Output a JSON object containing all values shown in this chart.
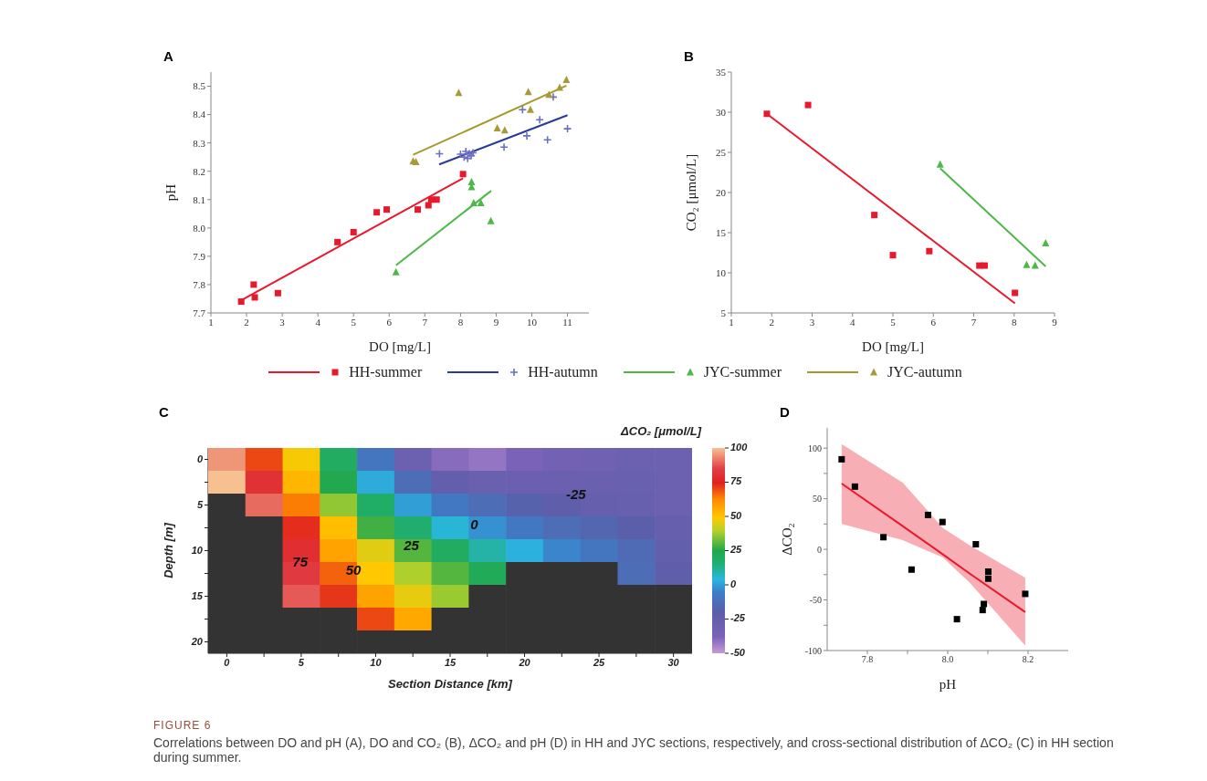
{
  "chart_data": [
    {
      "type": "scatter",
      "title": "A",
      "xlabel": "DO [mg/L]",
      "ylabel": "pH",
      "xlim": [
        1,
        11.6
      ],
      "xticks": [
        1,
        2,
        3,
        4,
        5,
        6,
        7,
        8,
        9,
        10,
        11
      ],
      "ylim": [
        7.7,
        8.55
      ],
      "yticks": [
        7.7,
        7.8,
        7.9,
        {
          "value": 8,
          "label": "8.0"
        },
        8.1,
        8.2,
        8.3,
        8.4,
        8.5
      ],
      "legend": "bottom",
      "series": [
        {
          "name": "HH-summer",
          "type": "scatter",
          "color": "#e8192c",
          "marker": "square",
          "x": [
            1.85,
            2.2,
            2.23,
            2.88,
            4.55,
            5.0,
            5.65,
            5.93,
            6.8,
            7.1,
            7.18,
            7.33,
            8.07
          ],
          "values": [
            7.74,
            7.8,
            7.755,
            7.77,
            7.95,
            7.985,
            8.055,
            8.065,
            8.065,
            8.08,
            8.1,
            8.1,
            8.19
          ]
        },
        {
          "type": "line",
          "color": "#e8192c",
          "x": [
            1.85,
            8.07
          ],
          "values": [
            7.745,
            8.175
          ]
        },
        {
          "name": "HH-autumn",
          "type": "scatter",
          "color": "#6b6fbf",
          "marker": "cross",
          "x": [
            7.41,
            8.0,
            8.1,
            8.15,
            8.2,
            8.3,
            8.35,
            8.25,
            9.22,
            9.74,
            9.86,
            10.22,
            10.44,
            10.6,
            11.0
          ],
          "values": [
            8.262,
            8.26,
            8.25,
            8.27,
            8.245,
            8.255,
            8.265,
            8.262,
            8.285,
            8.417,
            8.325,
            8.382,
            8.311,
            8.462,
            8.35
          ]
        },
        {
          "type": "line",
          "color": "#2b3a9a",
          "x": [
            7.4,
            11.0
          ],
          "values": [
            8.224,
            8.398
          ]
        },
        {
          "name": "JYC-summer",
          "type": "scatter",
          "color": "#4cb848",
          "marker": "triangle",
          "x": [
            6.19,
            8.31,
            8.31,
            8.37,
            8.57,
            8.85
          ],
          "values": [
            7.844,
            8.162,
            8.144,
            8.088,
            8.088,
            8.024
          ]
        },
        {
          "type": "line",
          "color": "#4cb848",
          "x": [
            6.19,
            8.86
          ],
          "values": [
            7.868,
            8.131
          ]
        },
        {
          "name": "JYC-autumn",
          "type": "scatter",
          "color": "#a89a3a",
          "marker": "triangle",
          "x": [
            6.67,
            6.75,
            7.95,
            9.03,
            9.24,
            9.9,
            9.96,
            10.48,
            10.78,
            10.97
          ],
          "values": [
            8.235,
            8.233,
            8.477,
            8.352,
            8.345,
            8.48,
            8.417,
            8.47,
            8.495,
            8.523
          ]
        },
        {
          "type": "line",
          "color": "#a39a28",
          "x": [
            6.67,
            10.97
          ],
          "values": [
            8.258,
            8.502
          ]
        }
      ]
    },
    {
      "type": "scatter",
      "title": "B",
      "xlabel": "DO [mg/L]",
      "ylabel": "CO₂ [μmol/L]",
      "xlim": [
        1,
        9
      ],
      "xticks": [
        1,
        2,
        3,
        4,
        5,
        6,
        7,
        8,
        9
      ],
      "ylim": [
        5,
        35
      ],
      "yticks": [
        5,
        10,
        15,
        20,
        25,
        30,
        35
      ],
      "series": [
        {
          "type": "scatter",
          "color": "#e8192c",
          "marker": "square",
          "x": [
            1.88,
            2.9,
            4.54,
            5.0,
            5.9,
            7.14,
            7.27,
            8.02
          ],
          "values": [
            29.8,
            30.9,
            17.2,
            12.2,
            12.7,
            10.9,
            10.9,
            7.5
          ]
        },
        {
          "type": "line",
          "color": "#e8192c",
          "x": [
            1.88,
            8.02
          ],
          "values": [
            29.8,
            6.2
          ]
        },
        {
          "type": "scatter",
          "color": "#4cb848",
          "marker": "triangle",
          "x": [
            6.17,
            8.31,
            8.52,
            8.78
          ],
          "values": [
            23.5,
            11.0,
            10.9,
            13.7
          ]
        },
        {
          "type": "line",
          "color": "#4cb848",
          "x": [
            6.17,
            8.78
          ],
          "values": [
            23.0,
            10.8
          ]
        }
      ]
    },
    {
      "type": "heatmap",
      "title": "C",
      "xlabel": "Section Distance [km]",
      "ylabel": "Depth [m]",
      "clabel": "ΔCO₂ [μmol/L]",
      "clim": [
        -50,
        100
      ],
      "cticks": [
        -50,
        -25,
        0,
        25,
        50,
        75,
        100
      ],
      "categories": [
        "0",
        null,
        "5",
        null,
        "10",
        null,
        "15",
        null,
        "20",
        null,
        "25",
        null,
        "30"
      ],
      "y_categories": [
        "0",
        null,
        "5",
        null,
        "10",
        null,
        "15",
        null,
        "20"
      ],
      "cells": [
        [
          95,
          70,
          48,
          20,
          -9,
          -30,
          -40,
          -42,
          -38,
          -34,
          -32,
          -30,
          -30
        ],
        [
          100,
          80,
          53,
          24,
          2,
          -13,
          -25,
          -28,
          -29,
          -29,
          -29,
          -28,
          -30
        ],
        [
          null,
          90,
          64,
          36,
          19,
          0,
          -8,
          -13,
          -18,
          -22,
          -26,
          -27,
          -30
        ],
        [
          null,
          null,
          73,
          51,
          28,
          17,
          5,
          -2,
          -8,
          -13,
          -16,
          -20,
          -26
        ],
        [
          null,
          null,
          79,
          57,
          45,
          30,
          20,
          10,
          3,
          -4,
          -9,
          -14,
          -24
        ],
        [
          null,
          null,
          83,
          67,
          49,
          39,
          30,
          22,
          null,
          null,
          null,
          -13,
          -22
        ],
        [
          null,
          null,
          88,
          72,
          57,
          46,
          37,
          null,
          null,
          null,
          null,
          null,
          null
        ],
        [
          null,
          null,
          null,
          null,
          70,
          56,
          null,
          null,
          null,
          null,
          null,
          null,
          null
        ],
        [
          null,
          null,
          null,
          null,
          null,
          null,
          null,
          null,
          null,
          null,
          null,
          null,
          null
        ]
      ],
      "annotations": [
        "75",
        "50",
        "25",
        "0",
        "-25"
      ]
    },
    {
      "type": "scatter",
      "title": "D",
      "xlabel": "pH",
      "ylabel": "ΔCO₂",
      "xlim": [
        7.7,
        8.3
      ],
      "xticks": [
        7.8,
        {
          "value": 7.9,
          "label": null
        },
        {
          "value": 8.0,
          "label": "8.0"
        },
        {
          "value": 8.1,
          "label": null
        },
        8.2
      ],
      "ylim": [
        -100,
        120
      ],
      "yticks": [
        -100,
        {
          "value": -75,
          "label": null
        },
        -50,
        {
          "value": -25,
          "label": null
        },
        0,
        {
          "value": 25,
          "label": null
        },
        50,
        {
          "value": 75,
          "label": null
        },
        100
      ],
      "series": [
        {
          "type": "scatter",
          "color": "#000000",
          "marker": "square",
          "x": [
            7.736,
            7.769,
            7.84,
            7.91,
            7.951,
            7.987,
            8.023,
            8.07,
            8.087,
            8.09,
            8.101,
            8.101,
            8.193
          ],
          "values": [
            89,
            62,
            12,
            -20,
            34,
            27,
            -69,
            5,
            -60,
            -54,
            -29,
            -22,
            -44
          ]
        },
        {
          "type": "line",
          "color": "#e8192c",
          "x": [
            7.736,
            7.888,
            7.988,
            8.055,
            8.193
          ],
          "values": [
            65,
            23,
            -5,
            -24,
            -62
          ],
          "lower": [
            25,
            9,
            -8,
            -33,
            -95
          ],
          "upper": [
            104,
            66,
            21,
            4,
            -28
          ]
        }
      ],
      "annotations": [
        "FIGURE 6",
        "Correlations between DO and pH (A), DO and CO₂ (B), ΔCO₂ and pH (D) in HH and JYC sections, respectively, and cross-sectional distribution of ΔCO₂ (C) in HH section during summer."
      ]
    }
  ]
}
